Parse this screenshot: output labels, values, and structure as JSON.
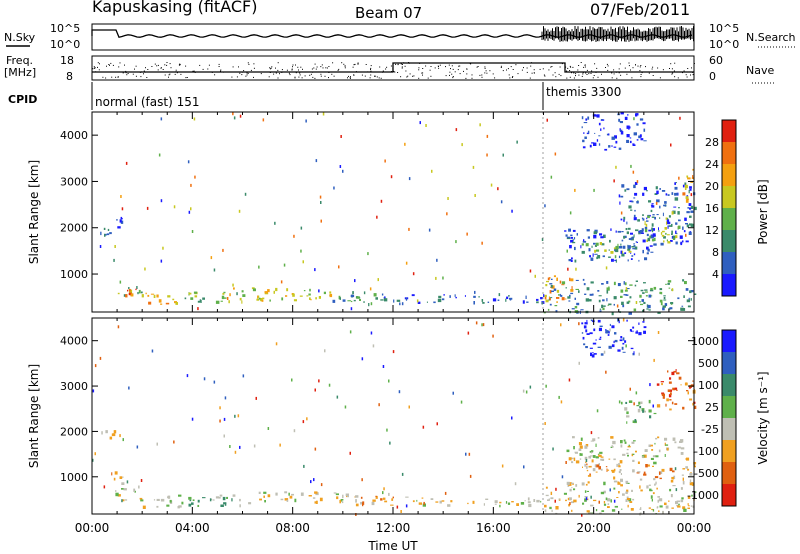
{
  "header": {
    "station": "Kapuskasing (fitACF)",
    "beam": "Beam 07",
    "date": "07/Feb/2011"
  },
  "summary_panels": {
    "nsky_label": "N.Sky",
    "nsearch_label": "N.Search",
    "log_ticks": [
      "10^5",
      "10^0"
    ],
    "freq_label_1": "Freq.",
    "freq_label_2": "[MHz]",
    "freq_ticks": [
      "18",
      "8"
    ],
    "nave_label": "Nave",
    "nave_ticks": [
      "60",
      "0"
    ],
    "cpid_label": "CPID",
    "cpid_modes": [
      {
        "name": "normal (fast) 151",
        "start_hour": 0,
        "end_hour": 18
      },
      {
        "name": "themis 3300",
        "start_hour": 18,
        "end_hour": 24
      }
    ]
  },
  "colors": {
    "power": [
      "#1a1aff",
      "#2f5fbf",
      "#3a8a6a",
      "#5fb04a",
      "#c8c820",
      "#f4a010",
      "#f07010",
      "#e02010"
    ],
    "velocity": [
      "#1a1aff",
      "#2f5fbf",
      "#3a8a6a",
      "#5fb04a",
      "#bfbfb4",
      "#f0a020",
      "#e06010",
      "#e02010"
    ]
  },
  "chart_data": [
    {
      "type": "heatmap",
      "name": "power",
      "ylabel": "Slant Range [km]",
      "xlabel": "",
      "xlim": [
        0,
        24
      ],
      "ylim": [
        180,
        4500
      ],
      "yticks": [
        "1000",
        "2000",
        "3000",
        "4000"
      ],
      "colorbar": {
        "label": "Power [dB]",
        "range": [
          0,
          32
        ],
        "ticks": [
          "4",
          "8",
          "12",
          "16",
          "20",
          "24",
          "28"
        ]
      },
      "regions": [
        {
          "t": [
            0.3,
            0.9
          ],
          "r": [
            1780,
            2050
          ],
          "level": 1
        },
        {
          "t": [
            0.8,
            1.2
          ],
          "r": [
            1950,
            2300
          ],
          "level": 0
        },
        {
          "t": [
            0.9,
            2.0
          ],
          "r": [
            480,
            780
          ],
          "level": 3
        },
        {
          "t": [
            1.2,
            1.8
          ],
          "r": [
            550,
            700
          ],
          "level": 6
        },
        {
          "t": [
            2.0,
            3.3
          ],
          "r": [
            350,
            620
          ],
          "level": 5
        },
        {
          "t": [
            3.3,
            5.5
          ],
          "r": [
            380,
            620
          ],
          "level": 3
        },
        {
          "t": [
            5.5,
            9.5
          ],
          "r": [
            420,
            720
          ],
          "level": 4
        },
        {
          "t": [
            9.5,
            11.5
          ],
          "r": [
            350,
            650
          ],
          "level": 2
        },
        {
          "t": [
            11.5,
            18.0
          ],
          "r": [
            380,
            580
          ],
          "level": 1
        },
        {
          "t": [
            18.0,
            19.2
          ],
          "r": [
            400,
            1000
          ],
          "level": 5
        },
        {
          "t": [
            18.0,
            24.0
          ],
          "r": [
            180,
            900
          ],
          "level": 2
        },
        {
          "t": [
            18.8,
            22.5
          ],
          "r": [
            1300,
            2000
          ],
          "level": 1
        },
        {
          "t": [
            19.5,
            21.5
          ],
          "r": [
            1400,
            1700
          ],
          "level": 3
        },
        {
          "t": [
            21.0,
            24.0
          ],
          "r": [
            1600,
            3000
          ],
          "level": 1
        },
        {
          "t": [
            22.0,
            23.5
          ],
          "r": [
            1700,
            2400
          ],
          "level": 3
        },
        {
          "t": [
            23.5,
            24.0
          ],
          "r": [
            2600,
            3300
          ],
          "level": 5
        },
        {
          "t": [
            19.5,
            22.0
          ],
          "r": [
            3700,
            4500
          ],
          "level": 0
        }
      ]
    },
    {
      "type": "heatmap",
      "name": "velocity",
      "ylabel": "Slant Range [km]",
      "xlabel": "Time UT",
      "xlim": [
        0,
        24
      ],
      "ylim": [
        180,
        4500
      ],
      "yticks": [
        "1000",
        "2000",
        "3000",
        "4000"
      ],
      "xticks": [
        "00:00",
        "04:00",
        "08:00",
        "12:00",
        "16:00",
        "20:00",
        "00:00"
      ],
      "colorbar": {
        "label": "Velocity",
        "ticks": [
          "1000",
          "500",
          "100",
          "25",
          "-25",
          "-100",
          "-500",
          "-1000"
        ]
      },
      "regions": [
        {
          "t": [
            0.3,
            0.9
          ],
          "r": [
            1780,
            2050
          ],
          "level": 4
        },
        {
          "t": [
            0.6,
            1.2
          ],
          "r": [
            850,
            1150
          ],
          "level": 5
        },
        {
          "t": [
            0.9,
            2.0
          ],
          "r": [
            480,
            780
          ],
          "level": 4
        },
        {
          "t": [
            2.0,
            3.5
          ],
          "r": [
            350,
            620
          ],
          "level": 4
        },
        {
          "t": [
            3.5,
            6.5
          ],
          "r": [
            380,
            620
          ],
          "level": 3
        },
        {
          "t": [
            6.5,
            10.5
          ],
          "r": [
            420,
            700
          ],
          "level": 4
        },
        {
          "t": [
            10.5,
            12.5
          ],
          "r": [
            350,
            600
          ],
          "level": 5
        },
        {
          "t": [
            12.5,
            18.0
          ],
          "r": [
            380,
            560
          ],
          "level": 4
        },
        {
          "t": [
            18.0,
            24.0
          ],
          "r": [
            180,
            900
          ],
          "level": 4
        },
        {
          "t": [
            18.8,
            24.0
          ],
          "r": [
            1300,
            1900
          ],
          "level": 4
        },
        {
          "t": [
            19.5,
            24.0
          ],
          "r": [
            900,
            1300
          ],
          "level": 5
        },
        {
          "t": [
            22.5,
            24.0
          ],
          "r": [
            2500,
            3400
          ],
          "level": 6
        },
        {
          "t": [
            21.0,
            22.5
          ],
          "r": [
            2200,
            2700
          ],
          "level": 3
        },
        {
          "t": [
            19.5,
            22.0
          ],
          "r": [
            3700,
            4500
          ],
          "level": 0
        }
      ]
    }
  ]
}
